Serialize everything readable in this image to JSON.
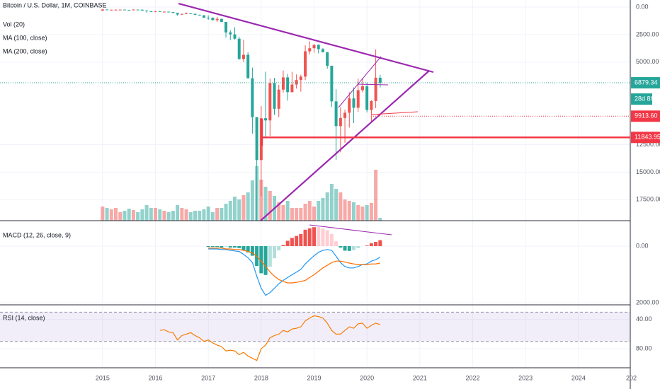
{
  "chart_data": {
    "type": "candlestick",
    "title": "Bitcoin / U.S. Dollar, 1M, COINBASE",
    "indicators": [
      "Vol (20)",
      "MA (100, close)",
      "MA (200, close)"
    ],
    "up_color": "#26a69a",
    "down_color": "#ef5350",
    "inverted": true,
    "xlim": [
      2013.06,
      2024.98
    ],
    "xticks": [
      2015,
      2016,
      2017,
      2018,
      2019,
      2020,
      2021,
      2022,
      2023,
      2024,
      {
        "value": 2025,
        "label": "202"
      }
    ],
    "ylim": [
      -643,
      19410
    ],
    "yticks": [
      {
        "value": 0,
        "label": "0.00"
      },
      {
        "value": 2500,
        "label": "2500.00"
      },
      {
        "value": 5000,
        "label": "5000.00"
      },
      {
        "value": 12500,
        "label": "12500.00"
      },
      {
        "value": 15000,
        "label": "15000.00"
      },
      {
        "value": 17500,
        "label": "17500.00"
      }
    ],
    "grid": true,
    "x": [
      "2015-01",
      "2015-02",
      "2015-03",
      "2015-04",
      "2015-05",
      "2015-06",
      "2015-07",
      "2015-08",
      "2015-09",
      "2015-10",
      "2015-11",
      "2015-12",
      "2016-01",
      "2016-02",
      "2016-03",
      "2016-04",
      "2016-05",
      "2016-06",
      "2016-07",
      "2016-08",
      "2016-09",
      "2016-10",
      "2016-11",
      "2016-12",
      "2017-01",
      "2017-02",
      "2017-03",
      "2017-04",
      "2017-05",
      "2017-06",
      "2017-07",
      "2017-08",
      "2017-09",
      "2017-10",
      "2017-11",
      "2017-12",
      "2018-01",
      "2018-02",
      "2018-03",
      "2018-04",
      "2018-05",
      "2018-06",
      "2018-07",
      "2018-08",
      "2018-09",
      "2018-10",
      "2018-11",
      "2018-12",
      "2019-01",
      "2019-02",
      "2019-03",
      "2019-04",
      "2019-05",
      "2019-06",
      "2019-07",
      "2019-08",
      "2019-09",
      "2019-10",
      "2019-11",
      "2019-12",
      "2020-01",
      "2020-02",
      "2020-03",
      "2020-04"
    ],
    "open": [
      318,
      218,
      254,
      244,
      236,
      230,
      263,
      284,
      230,
      236,
      314,
      377,
      430,
      369,
      437,
      416,
      448,
      531,
      673,
      624,
      574,
      609,
      700,
      743,
      964,
      966,
      1190,
      1071,
      1348,
      2300,
      2480,
      2875,
      4720,
      4340,
      6470,
      10000,
      13900,
      10100,
      10300,
      6900,
      9240,
      7500,
      6390,
      7730,
      7040,
      6630,
      6320,
      4020,
      3740,
      3440,
      3820,
      4100,
      5330,
      8570,
      10820,
      10080,
      9600,
      8300,
      9150,
      7550,
      7200,
      9350,
      8540,
      6420
    ],
    "high": [
      320,
      265,
      300,
      261,
      248,
      268,
      317,
      285,
      243,
      335,
      502,
      470,
      463,
      446,
      439,
      467,
      547,
      780,
      704,
      626,
      630,
      740,
      755,
      980,
      1155,
      1210,
      1350,
      1361,
      2775,
      3000,
      2950,
      4780,
      5000,
      6470,
      11500,
      19890,
      17200,
      11800,
      11700,
      9800,
      10000,
      7770,
      8500,
      7760,
      7410,
      7680,
      6640,
      4310,
      4150,
      4210,
      4120,
      5600,
      9080,
      13880,
      13200,
      12330,
      10950,
      10540,
      9510,
      7750,
      9580,
      10500,
      9190,
      7300
    ],
    "low": [
      170,
      212,
      237,
      214,
      226,
      221,
      253,
      199,
      225,
      236,
      300,
      348,
      355,
      366,
      400,
      414,
      442,
      511,
      595,
      480,
      569,
      606,
      688,
      740,
      750,
      940,
      890,
      1060,
      1348,
      2100,
      1830,
      2700,
      2970,
      4110,
      5500,
      10000,
      9000,
      5870,
      6500,
      6430,
      7060,
      5760,
      6070,
      5880,
      6120,
      6150,
      3480,
      3120,
      3350,
      3380,
      3730,
      4080,
      5330,
      7460,
      9100,
      9320,
      7740,
      7300,
      6515,
      6430,
      6860,
      8450,
      3850,
      6150
    ],
    "close": [
      218,
      254,
      244,
      236,
      230,
      263,
      284,
      230,
      236,
      314,
      377,
      430,
      369,
      437,
      416,
      448,
      531,
      673,
      624,
      574,
      609,
      700,
      743,
      964,
      966,
      1190,
      1071,
      1348,
      2300,
      2480,
      2875,
      4720,
      4340,
      6470,
      10000,
      13900,
      10100,
      10300,
      6900,
      9240,
      7500,
      6390,
      7730,
      7040,
      6630,
      6320,
      4020,
      3740,
      3440,
      3820,
      4100,
      5330,
      8570,
      10820,
      10080,
      9600,
      8300,
      9150,
      7550,
      7200,
      9350,
      8540,
      6420,
      6879.34
    ],
    "volume": [
      20,
      18,
      16,
      18,
      12,
      14,
      17,
      15,
      12,
      16,
      22,
      18,
      18,
      16,
      14,
      12,
      14,
      22,
      18,
      16,
      12,
      14,
      14,
      16,
      20,
      12,
      18,
      18,
      24,
      28,
      34,
      30,
      36,
      40,
      57,
      77,
      58,
      48,
      42,
      35,
      26,
      22,
      28,
      18,
      18,
      18,
      24,
      28,
      20,
      28,
      32,
      40,
      52,
      45,
      40,
      30,
      28,
      26,
      22,
      20,
      22,
      25,
      72,
      4
    ],
    "price_lines": [
      {
        "value": 6879.34,
        "color": "#26a69a",
        "style": "dotted"
      },
      {
        "value": 9913.6,
        "label": "9913.60",
        "color": "#f23645",
        "style": "dotted"
      },
      {
        "value": 11843.95,
        "color": "#f23645",
        "style": "solid"
      }
    ],
    "countdown": "28d 8h",
    "macd": {
      "label": "MACD (12, 26, close, 9)",
      "ylim": [
        -900,
        2050
      ],
      "yticks": [
        {
          "value": 0,
          "label": "0.00"
        },
        {
          "value": 2000,
          "label": "2000.00"
        }
      ],
      "macd_color": "#2196f3",
      "signal_color": "#ff6d00",
      "macd": [
        null,
        null,
        null,
        null,
        null,
        null,
        null,
        null,
        null,
        null,
        null,
        null,
        null,
        null,
        null,
        null,
        null,
        null,
        null,
        null,
        null,
        null,
        null,
        null,
        100,
        100,
        100,
        120,
        120,
        150,
        170,
        190,
        290,
        410,
        580,
        1060,
        1490,
        1740,
        1640,
        1490,
        1330,
        1210,
        1110,
        1010,
        920,
        820,
        630,
        480,
        340,
        220,
        150,
        120,
        150,
        360,
        580,
        720,
        770,
        770,
        720,
        650,
        630,
        530,
        480,
        390
      ],
      "signal": [
        null,
        null,
        null,
        null,
        null,
        null,
        null,
        null,
        null,
        null,
        null,
        null,
        null,
        null,
        null,
        null,
        null,
        null,
        null,
        null,
        null,
        null,
        null,
        null,
        70,
        70,
        70,
        70,
        100,
        100,
        120,
        120,
        150,
        190,
        240,
        360,
        530,
        720,
        910,
        1060,
        1180,
        1250,
        1300,
        1300,
        1280,
        1250,
        1210,
        1110,
        1010,
        890,
        770,
        680,
        580,
        530,
        530,
        560,
        600,
        630,
        650,
        650,
        650,
        630,
        630,
        600
      ],
      "histogram": [
        null,
        null,
        null,
        null,
        null,
        null,
        null,
        null,
        null,
        null,
        null,
        null,
        null,
        null,
        null,
        null,
        null,
        null,
        null,
        null,
        null,
        null,
        null,
        null,
        30,
        30,
        30,
        50,
        20,
        50,
        50,
        70,
        140,
        220,
        340,
        700,
        960,
        1020,
        730,
        430,
        150,
        -40,
        -190,
        -290,
        -360,
        -430,
        -580,
        -630,
        -670,
        -670,
        -620,
        -560,
        -430,
        -170,
        50,
        160,
        170,
        140,
        70,
        0,
        -20,
        -100,
        -150,
        -210
      ]
    },
    "rsi": {
      "label": "RSI (14, close)",
      "ylim": [
        20,
        106
      ],
      "yticks": [
        {
          "value": 40,
          "label": "40.00"
        },
        {
          "value": 80,
          "label": "80.00"
        }
      ],
      "bands": [
        30,
        70
      ],
      "color": "#f57c00",
      "values": [
        null,
        null,
        null,
        null,
        null,
        null,
        null,
        null,
        null,
        null,
        null,
        null,
        null,
        55,
        54,
        57,
        58,
        68,
        62,
        60,
        58,
        62,
        65,
        70,
        68,
        72,
        75,
        77,
        83,
        82,
        83,
        88,
        85,
        90,
        93,
        96,
        80,
        75,
        65,
        62,
        60,
        55,
        57,
        53,
        52,
        50,
        42,
        38,
        35,
        36,
        38,
        45,
        55,
        60,
        60,
        55,
        50,
        52,
        46,
        45,
        52,
        48,
        45,
        47
      ]
    }
  }
}
